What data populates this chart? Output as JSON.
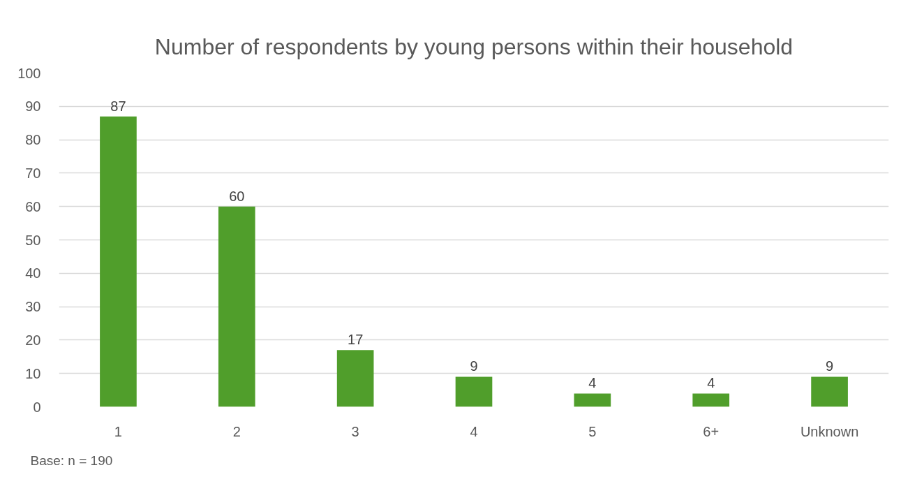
{
  "chart_data": {
    "type": "bar",
    "title": "Number of respondents by young persons within their household",
    "categories": [
      "1",
      "2",
      "3",
      "4",
      "5",
      "6+",
      "Unknown"
    ],
    "values": [
      87,
      60,
      17,
      9,
      4,
      4,
      9
    ],
    "color": "#509e2b",
    "ylim": [
      0,
      100
    ],
    "yticks": [
      0,
      10,
      20,
      30,
      40,
      50,
      60,
      70,
      80,
      90,
      100
    ],
    "grid": "y",
    "data_labels": true,
    "annotations": [
      "Base: n = 190"
    ]
  }
}
